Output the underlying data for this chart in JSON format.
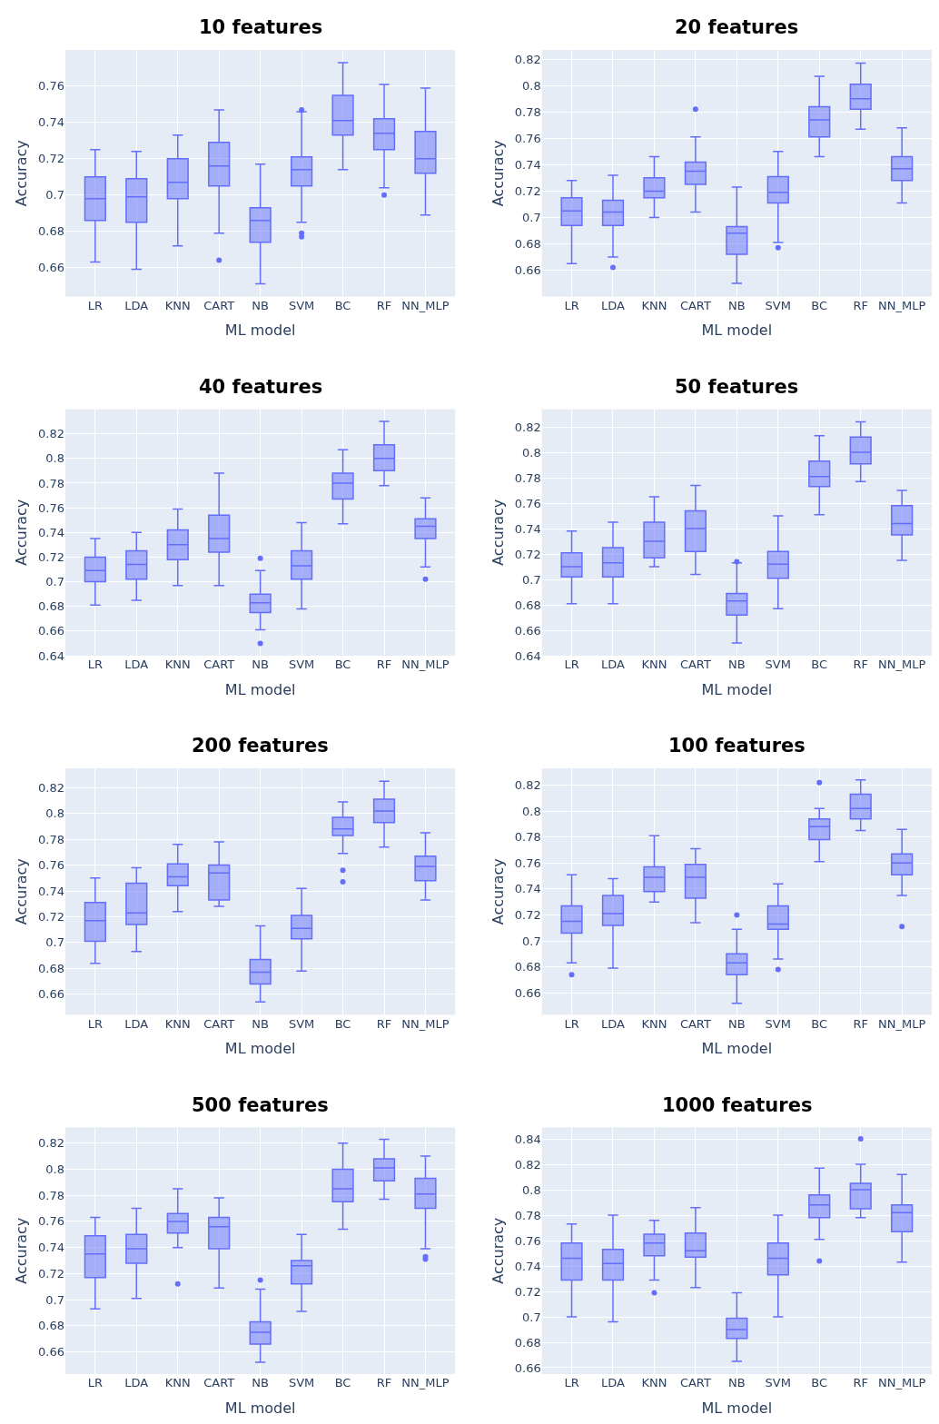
{
  "chart_data": [
    {
      "type": "box",
      "title": "10 features",
      "xlabel": "ML model",
      "ylabel": "Accuracy",
      "color": "#636efa",
      "grid": true,
      "ylim": [
        0.644,
        0.78
      ],
      "yticks": [
        0.66,
        0.68,
        0.7,
        0.72,
        0.74,
        0.76
      ],
      "categories": [
        "LR",
        "LDA",
        "KNN",
        "CART",
        "NB",
        "SVM",
        "BC",
        "RF",
        "NN_MLP"
      ],
      "boxes": [
        {
          "low": 0.663,
          "q1": 0.686,
          "median": 0.698,
          "q3": 0.71,
          "high": 0.725
        },
        {
          "low": 0.659,
          "q1": 0.685,
          "median": 0.699,
          "q3": 0.709,
          "high": 0.724
        },
        {
          "low": 0.672,
          "q1": 0.698,
          "median": 0.707,
          "q3": 0.72,
          "high": 0.733
        },
        {
          "low": 0.679,
          "q1": 0.705,
          "median": 0.716,
          "q3": 0.729,
          "high": 0.747,
          "outliers": [
            0.664
          ]
        },
        {
          "low": 0.651,
          "q1": 0.674,
          "median": 0.686,
          "q3": 0.693,
          "high": 0.717
        },
        {
          "low": 0.685,
          "q1": 0.705,
          "median": 0.714,
          "q3": 0.721,
          "high": 0.746,
          "outliers": [
            0.747,
            0.679,
            0.677
          ]
        },
        {
          "low": 0.714,
          "q1": 0.733,
          "median": 0.741,
          "q3": 0.755,
          "high": 0.773
        },
        {
          "low": 0.704,
          "q1": 0.725,
          "median": 0.734,
          "q3": 0.742,
          "high": 0.761,
          "outliers": [
            0.7
          ]
        },
        {
          "low": 0.689,
          "q1": 0.712,
          "median": 0.72,
          "q3": 0.735,
          "high": 0.759
        }
      ]
    },
    {
      "type": "box",
      "title": "20 features",
      "xlabel": "ML model",
      "ylabel": "Accuracy",
      "color": "#636efa",
      "grid": true,
      "ylim": [
        0.64,
        0.827
      ],
      "yticks": [
        0.66,
        0.68,
        0.7,
        0.72,
        0.74,
        0.76,
        0.78,
        0.8,
        0.82
      ],
      "categories": [
        "LR",
        "LDA",
        "KNN",
        "CART",
        "NB",
        "SVM",
        "BC",
        "RF",
        "NN_MLP"
      ],
      "boxes": [
        {
          "low": 0.665,
          "q1": 0.694,
          "median": 0.705,
          "q3": 0.715,
          "high": 0.728
        },
        {
          "low": 0.67,
          "q1": 0.694,
          "median": 0.704,
          "q3": 0.713,
          "high": 0.732,
          "outliers": [
            0.662
          ]
        },
        {
          "low": 0.7,
          "q1": 0.715,
          "median": 0.72,
          "q3": 0.73,
          "high": 0.746
        },
        {
          "low": 0.704,
          "q1": 0.725,
          "median": 0.735,
          "q3": 0.742,
          "high": 0.761,
          "outliers": [
            0.782
          ]
        },
        {
          "low": 0.65,
          "q1": 0.672,
          "median": 0.688,
          "q3": 0.693,
          "high": 0.723
        },
        {
          "low": 0.681,
          "q1": 0.711,
          "median": 0.719,
          "q3": 0.731,
          "high": 0.75,
          "outliers": [
            0.677
          ]
        },
        {
          "low": 0.746,
          "q1": 0.761,
          "median": 0.774,
          "q3": 0.784,
          "high": 0.807
        },
        {
          "low": 0.767,
          "q1": 0.782,
          "median": 0.79,
          "q3": 0.801,
          "high": 0.817
        },
        {
          "low": 0.711,
          "q1": 0.728,
          "median": 0.737,
          "q3": 0.746,
          "high": 0.768
        }
      ]
    },
    {
      "type": "box",
      "title": "40 features",
      "xlabel": "ML model",
      "ylabel": "Accuracy",
      "color": "#636efa",
      "grid": true,
      "ylim": [
        0.64,
        0.84
      ],
      "yticks": [
        0.64,
        0.66,
        0.68,
        0.7,
        0.72,
        0.74,
        0.76,
        0.78,
        0.8,
        0.82
      ],
      "categories": [
        "LR",
        "LDA",
        "KNN",
        "CART",
        "NB",
        "SVM",
        "BC",
        "RF",
        "NN_MLP"
      ],
      "boxes": [
        {
          "low": 0.681,
          "q1": 0.7,
          "median": 0.709,
          "q3": 0.72,
          "high": 0.735
        },
        {
          "low": 0.685,
          "q1": 0.702,
          "median": 0.714,
          "q3": 0.725,
          "high": 0.74
        },
        {
          "low": 0.697,
          "q1": 0.718,
          "median": 0.73,
          "q3": 0.742,
          "high": 0.759
        },
        {
          "low": 0.697,
          "q1": 0.724,
          "median": 0.735,
          "q3": 0.754,
          "high": 0.788
        },
        {
          "low": 0.661,
          "q1": 0.675,
          "median": 0.683,
          "q3": 0.69,
          "high": 0.709,
          "outliers": [
            0.719,
            0.65
          ]
        },
        {
          "low": 0.678,
          "q1": 0.702,
          "median": 0.713,
          "q3": 0.725,
          "high": 0.748
        },
        {
          "low": 0.747,
          "q1": 0.767,
          "median": 0.78,
          "q3": 0.788,
          "high": 0.807
        },
        {
          "low": 0.778,
          "q1": 0.79,
          "median": 0.8,
          "q3": 0.811,
          "high": 0.83
        },
        {
          "low": 0.712,
          "q1": 0.735,
          "median": 0.745,
          "q3": 0.751,
          "high": 0.768,
          "outliers": [
            0.702
          ]
        }
      ]
    },
    {
      "type": "box",
      "title": "50 features",
      "xlabel": "ML model",
      "ylabel": "Accuracy",
      "color": "#636efa",
      "grid": true,
      "ylim": [
        0.64,
        0.834
      ],
      "yticks": [
        0.64,
        0.66,
        0.68,
        0.7,
        0.72,
        0.74,
        0.76,
        0.78,
        0.8,
        0.82
      ],
      "categories": [
        "LR",
        "LDA",
        "KNN",
        "CART",
        "NB",
        "SVM",
        "BC",
        "RF",
        "NN_MLP"
      ],
      "boxes": [
        {
          "low": 0.681,
          "q1": 0.702,
          "median": 0.71,
          "q3": 0.721,
          "high": 0.738
        },
        {
          "low": 0.681,
          "q1": 0.702,
          "median": 0.713,
          "q3": 0.725,
          "high": 0.745
        },
        {
          "low": 0.71,
          "q1": 0.717,
          "median": 0.73,
          "q3": 0.745,
          "high": 0.765
        },
        {
          "low": 0.704,
          "q1": 0.722,
          "median": 0.74,
          "q3": 0.754,
          "high": 0.774
        },
        {
          "low": 0.65,
          "q1": 0.672,
          "median": 0.683,
          "q3": 0.689,
          "high": 0.713,
          "outliers": [
            0.714
          ]
        },
        {
          "low": 0.677,
          "q1": 0.701,
          "median": 0.712,
          "q3": 0.722,
          "high": 0.75
        },
        {
          "low": 0.751,
          "q1": 0.773,
          "median": 0.781,
          "q3": 0.793,
          "high": 0.813
        },
        {
          "low": 0.777,
          "q1": 0.791,
          "median": 0.8,
          "q3": 0.812,
          "high": 0.824
        },
        {
          "low": 0.715,
          "q1": 0.735,
          "median": 0.744,
          "q3": 0.758,
          "high": 0.77
        }
      ]
    },
    {
      "type": "box",
      "title": "200 features",
      "xlabel": "ML model",
      "ylabel": "Accuracy",
      "color": "#636efa",
      "grid": true,
      "ylim": [
        0.644,
        0.835
      ],
      "yticks": [
        0.66,
        0.68,
        0.7,
        0.72,
        0.74,
        0.76,
        0.78,
        0.8,
        0.82
      ],
      "categories": [
        "LR",
        "LDA",
        "KNN",
        "CART",
        "NB",
        "SVM",
        "BC",
        "RF",
        "NN_MLP"
      ],
      "boxes": [
        {
          "low": 0.684,
          "q1": 0.701,
          "median": 0.717,
          "q3": 0.731,
          "high": 0.75
        },
        {
          "low": 0.693,
          "q1": 0.714,
          "median": 0.723,
          "q3": 0.746,
          "high": 0.758
        },
        {
          "low": 0.724,
          "q1": 0.744,
          "median": 0.751,
          "q3": 0.761,
          "high": 0.776
        },
        {
          "low": 0.728,
          "q1": 0.733,
          "median": 0.754,
          "q3": 0.76,
          "high": 0.778
        },
        {
          "low": 0.654,
          "q1": 0.668,
          "median": 0.677,
          "q3": 0.687,
          "high": 0.713
        },
        {
          "low": 0.678,
          "q1": 0.703,
          "median": 0.711,
          "q3": 0.721,
          "high": 0.742
        },
        {
          "low": 0.769,
          "q1": 0.783,
          "median": 0.788,
          "q3": 0.797,
          "high": 0.809,
          "outliers": [
            0.756,
            0.747
          ]
        },
        {
          "low": 0.774,
          "q1": 0.793,
          "median": 0.802,
          "q3": 0.811,
          "high": 0.825
        },
        {
          "low": 0.733,
          "q1": 0.748,
          "median": 0.759,
          "q3": 0.767,
          "high": 0.785
        }
      ]
    },
    {
      "type": "box",
      "title": "100 features",
      "xlabel": "ML model",
      "ylabel": "Accuracy",
      "color": "#636efa",
      "grid": true,
      "ylim": [
        0.643,
        0.833
      ],
      "yticks": [
        0.66,
        0.68,
        0.7,
        0.72,
        0.74,
        0.76,
        0.78,
        0.8,
        0.82
      ],
      "categories": [
        "LR",
        "LDA",
        "KNN",
        "CART",
        "NB",
        "SVM",
        "BC",
        "RF",
        "NN_MLP"
      ],
      "boxes": [
        {
          "low": 0.683,
          "q1": 0.706,
          "median": 0.715,
          "q3": 0.727,
          "high": 0.751,
          "outliers": [
            0.674
          ]
        },
        {
          "low": 0.679,
          "q1": 0.712,
          "median": 0.721,
          "q3": 0.735,
          "high": 0.748
        },
        {
          "low": 0.73,
          "q1": 0.738,
          "median": 0.749,
          "q3": 0.757,
          "high": 0.781
        },
        {
          "low": 0.714,
          "q1": 0.733,
          "median": 0.749,
          "q3": 0.759,
          "high": 0.771
        },
        {
          "low": 0.652,
          "q1": 0.674,
          "median": 0.683,
          "q3": 0.69,
          "high": 0.709,
          "outliers": [
            0.72
          ]
        },
        {
          "low": 0.686,
          "q1": 0.709,
          "median": 0.713,
          "q3": 0.727,
          "high": 0.744,
          "outliers": [
            0.678
          ]
        },
        {
          "low": 0.761,
          "q1": 0.778,
          "median": 0.788,
          "q3": 0.794,
          "high": 0.802,
          "outliers": [
            0.822
          ]
        },
        {
          "low": 0.785,
          "q1": 0.794,
          "median": 0.802,
          "q3": 0.813,
          "high": 0.824
        },
        {
          "low": 0.735,
          "q1": 0.751,
          "median": 0.76,
          "q3": 0.767,
          "high": 0.786,
          "outliers": [
            0.711
          ]
        }
      ]
    },
    {
      "type": "box",
      "title": "500 features",
      "xlabel": "ML model",
      "ylabel": "Accuracy",
      "color": "#636efa",
      "grid": true,
      "ylim": [
        0.643,
        0.832
      ],
      "yticks": [
        0.66,
        0.68,
        0.7,
        0.72,
        0.74,
        0.76,
        0.78,
        0.8,
        0.82
      ],
      "categories": [
        "LR",
        "LDA",
        "KNN",
        "CART",
        "NB",
        "SVM",
        "BC",
        "RF",
        "NN_MLP"
      ],
      "boxes": [
        {
          "low": 0.693,
          "q1": 0.717,
          "median": 0.735,
          "q3": 0.749,
          "high": 0.763
        },
        {
          "low": 0.701,
          "q1": 0.728,
          "median": 0.739,
          "q3": 0.75,
          "high": 0.77
        },
        {
          "low": 0.74,
          "q1": 0.751,
          "median": 0.76,
          "q3": 0.766,
          "high": 0.785,
          "outliers": [
            0.712
          ]
        },
        {
          "low": 0.709,
          "q1": 0.739,
          "median": 0.756,
          "q3": 0.763,
          "high": 0.778
        },
        {
          "low": 0.652,
          "q1": 0.666,
          "median": 0.675,
          "q3": 0.683,
          "high": 0.708,
          "outliers": [
            0.715
          ]
        },
        {
          "low": 0.691,
          "q1": 0.712,
          "median": 0.726,
          "q3": 0.73,
          "high": 0.75
        },
        {
          "low": 0.754,
          "q1": 0.775,
          "median": 0.785,
          "q3": 0.8,
          "high": 0.82
        },
        {
          "low": 0.777,
          "q1": 0.791,
          "median": 0.801,
          "q3": 0.808,
          "high": 0.823
        },
        {
          "low": 0.739,
          "q1": 0.77,
          "median": 0.781,
          "q3": 0.793,
          "high": 0.81,
          "outliers": [
            0.733,
            0.731
          ]
        }
      ]
    },
    {
      "type": "box",
      "title": "1000 features",
      "xlabel": "ML model",
      "ylabel": "Accuracy",
      "color": "#636efa",
      "grid": true,
      "ylim": [
        0.655,
        0.849
      ],
      "yticks": [
        0.66,
        0.68,
        0.7,
        0.72,
        0.74,
        0.76,
        0.78,
        0.8,
        0.82,
        0.84
      ],
      "categories": [
        "LR",
        "LDA",
        "KNN",
        "CART",
        "NB",
        "SVM",
        "BC",
        "RF",
        "NN_MLP"
      ],
      "boxes": [
        {
          "low": 0.7,
          "q1": 0.729,
          "median": 0.746,
          "q3": 0.758,
          "high": 0.773
        },
        {
          "low": 0.696,
          "q1": 0.729,
          "median": 0.742,
          "q3": 0.753,
          "high": 0.78
        },
        {
          "low": 0.729,
          "q1": 0.748,
          "median": 0.758,
          "q3": 0.765,
          "high": 0.776,
          "outliers": [
            0.719
          ]
        },
        {
          "low": 0.723,
          "q1": 0.747,
          "median": 0.752,
          "q3": 0.766,
          "high": 0.786
        },
        {
          "low": 0.665,
          "q1": 0.683,
          "median": 0.69,
          "q3": 0.699,
          "high": 0.719
        },
        {
          "low": 0.7,
          "q1": 0.733,
          "median": 0.746,
          "q3": 0.758,
          "high": 0.78
        },
        {
          "low": 0.761,
          "q1": 0.778,
          "median": 0.788,
          "q3": 0.796,
          "high": 0.817,
          "outliers": [
            0.744
          ]
        },
        {
          "low": 0.778,
          "q1": 0.785,
          "median": 0.8,
          "q3": 0.805,
          "high": 0.82,
          "outliers": [
            0.84
          ]
        },
        {
          "low": 0.743,
          "q1": 0.767,
          "median": 0.782,
          "q3": 0.788,
          "high": 0.812
        }
      ]
    }
  ]
}
